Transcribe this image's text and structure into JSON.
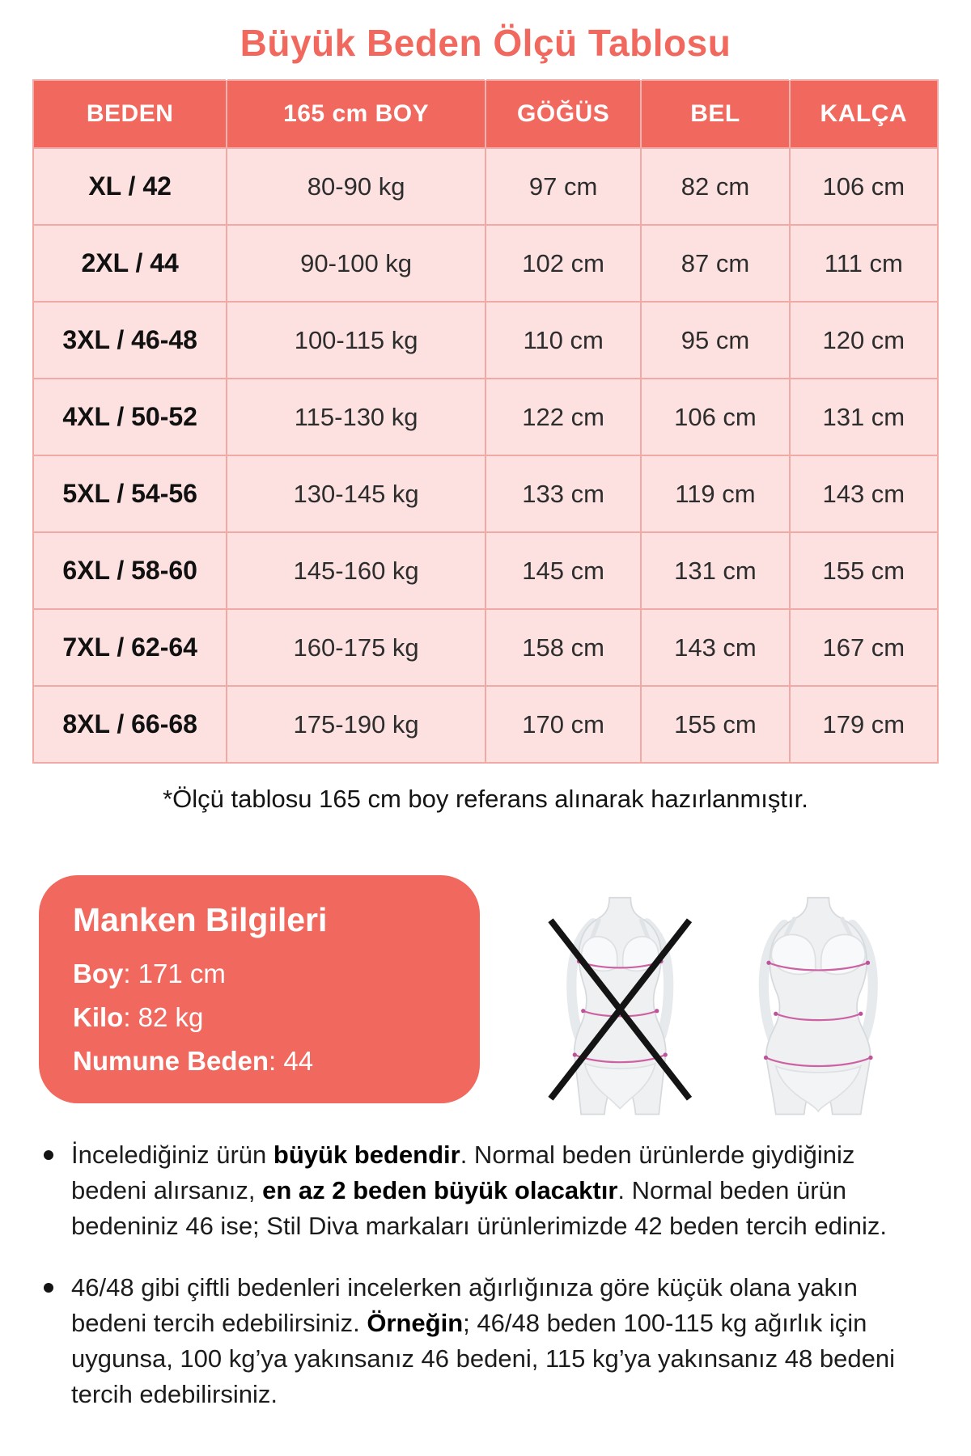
{
  "page_title": "Büyük Beden Ölçü Tablosu",
  "colors": {
    "coral": "#f1695e",
    "row_pink": "#fce1e0",
    "border_pink": "#f0a9a5",
    "measure_line_pink": "#cd62a2",
    "text_ink": "#1c1c1c"
  },
  "size_table": {
    "headers": [
      "BEDEN",
      "165 cm BOY",
      "GÖĞÜS",
      "BEL",
      "KALÇA"
    ],
    "rows": [
      [
        "XL / 42",
        "80-90 kg",
        "97 cm",
        "82 cm",
        "106 cm"
      ],
      [
        "2XL / 44",
        "90-100 kg",
        "102 cm",
        "87 cm",
        "111 cm"
      ],
      [
        "3XL / 46-48",
        "100-115 kg",
        "110 cm",
        "95 cm",
        "120 cm"
      ],
      [
        "4XL / 50-52",
        "115-130 kg",
        "122 cm",
        "106 cm",
        "131 cm"
      ],
      [
        "5XL / 54-56",
        "130-145 kg",
        "133 cm",
        "119 cm",
        "143 cm"
      ],
      [
        "6XL / 58-60",
        "145-160 kg",
        "145 cm",
        "131 cm",
        "155 cm"
      ],
      [
        "7XL / 62-64",
        "160-175 kg",
        "158 cm",
        "143 cm",
        "167 cm"
      ],
      [
        "8XL / 66-68",
        "175-190 kg",
        "170 cm",
        "155 cm",
        "179 cm"
      ]
    ]
  },
  "footnote": "*Ölçü tablosu 165 cm boy referans alınarak hazırlanmıştır.",
  "model_info": {
    "title": "Manken Bilgileri",
    "separator": ": ",
    "fields": [
      {
        "label": "Boy",
        "value": "171 cm"
      },
      {
        "label": "Kilo",
        "value": "82 kg"
      },
      {
        "label": "Numune Beden",
        "value": "44"
      }
    ]
  },
  "figures": {
    "left_icon": "slim-body-crossed-out-icon",
    "right_icon": "plus-size-body-icon"
  },
  "notes": [
    {
      "segments": [
        {
          "text": "İncelediğiniz ürün ",
          "bold": false
        },
        {
          "text": "büyük bedendir",
          "bold": true
        },
        {
          "text": ". Normal beden ürünlerde giydiğiniz bedeni alırsanız, ",
          "bold": false
        },
        {
          "text": "en az 2 beden büyük olacaktır",
          "bold": true
        },
        {
          "text": ". Normal beden ürün bedeniniz 46 ise; Stil Diva markaları ürünlerimizde 42 beden tercih ediniz.",
          "bold": false
        }
      ]
    },
    {
      "segments": [
        {
          "text": "46/48 gibi çiftli bedenleri incelerken ağırlığınıza göre küçük olana yakın bedeni tercih edebilirsiniz. ",
          "bold": false
        },
        {
          "text": "Örneğin",
          "bold": true
        },
        {
          "text": "; 46/48 beden 100-115 kg ağırlık için uygunsa, 100 kg’ya yakınsanız 46 bedeni, 115 kg’ya yakınsanız 48 bedeni tercih edebilirsiniz.",
          "bold": false
        }
      ]
    }
  ]
}
